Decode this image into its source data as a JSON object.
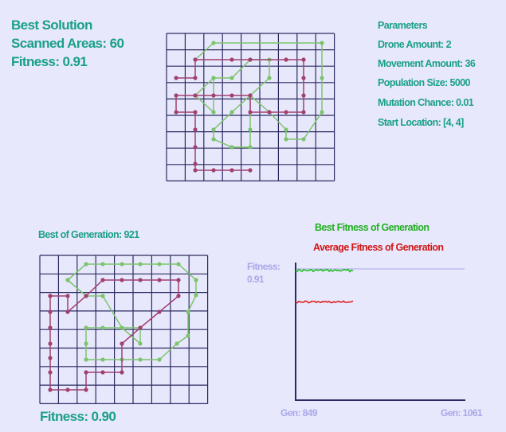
{
  "best_solution": {
    "title": "Best Solution",
    "scanned_label": "Scanned Areas: 60",
    "fitness_label": "Fitness: 0.91"
  },
  "parameters": {
    "title": "Parameters",
    "drone_amount": "Drone Amount: 2",
    "movement_amount": "Movement Amount: 36",
    "population_size": "Population Size: 5000",
    "mutation_chance": "Mutation Chance: 0.01",
    "start_location": "Start Location: [4, 4]"
  },
  "generation": {
    "title": "Best of Generation: 921",
    "fitness_label": "Fitness: 0.90"
  },
  "chart": {
    "legend_best": "Best Fitness of Generation",
    "legend_avg": "Average Fitness of Generation",
    "y_label_1": "Fitness:",
    "y_label_2": "0.91",
    "x_start": "Gen: 849",
    "x_end": "Gen: 1061"
  },
  "colors": {
    "text": "#1aa08a",
    "grid": "#2a2a60",
    "path_a": "#7cc46c",
    "path_b": "#a04070",
    "best_line": "#22c022",
    "avg_line": "#e02020",
    "axis_text": "#a8a8e8"
  },
  "chart_data": {
    "type": "line",
    "x_range": [
      849,
      1061
    ],
    "reference_line": 0.91,
    "series": [
      {
        "name": "Best Fitness of Generation",
        "x_range": [
          849,
          921
        ],
        "approx_value": 0.9
      },
      {
        "name": "Average Fitness of Generation",
        "x_range": [
          849,
          921
        ],
        "approx_value": 0.84
      }
    ]
  }
}
